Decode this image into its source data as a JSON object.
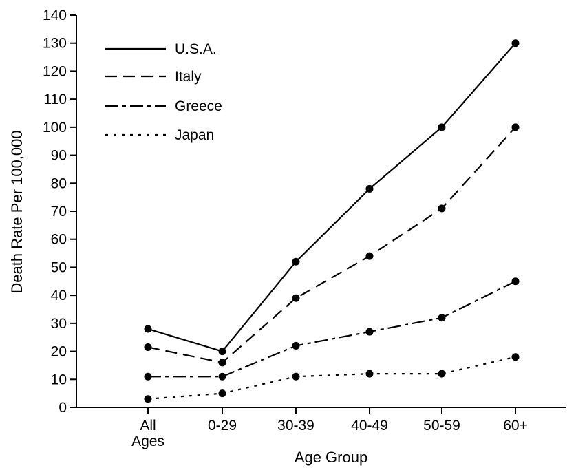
{
  "chart_data": {
    "type": "line",
    "title": "",
    "xlabel": "Age Group",
    "ylabel": "Death Rate Per 100,000",
    "categories": [
      "All Ages",
      "0-29",
      "30-39",
      "40-49",
      "50-59",
      "60+"
    ],
    "ylim": [
      0,
      140
    ],
    "yticks": [
      0,
      10,
      20,
      30,
      40,
      50,
      60,
      70,
      80,
      90,
      100,
      110,
      120,
      130,
      140
    ],
    "grid": false,
    "legend_position": "top-left",
    "series": [
      {
        "name": "U.S.A.",
        "style": "solid",
        "values": [
          28,
          20,
          52,
          78,
          100,
          130
        ]
      },
      {
        "name": "Italy",
        "style": "dashed",
        "values": [
          21.5,
          16,
          39,
          54,
          71,
          100
        ]
      },
      {
        "name": "Greece",
        "style": "dash-dot",
        "values": [
          11,
          11,
          22,
          27,
          32,
          45
        ]
      },
      {
        "name": "Japan",
        "style": "dotted",
        "values": [
          3,
          5,
          11,
          12,
          12,
          18
        ]
      }
    ],
    "line_color": "#000000"
  }
}
